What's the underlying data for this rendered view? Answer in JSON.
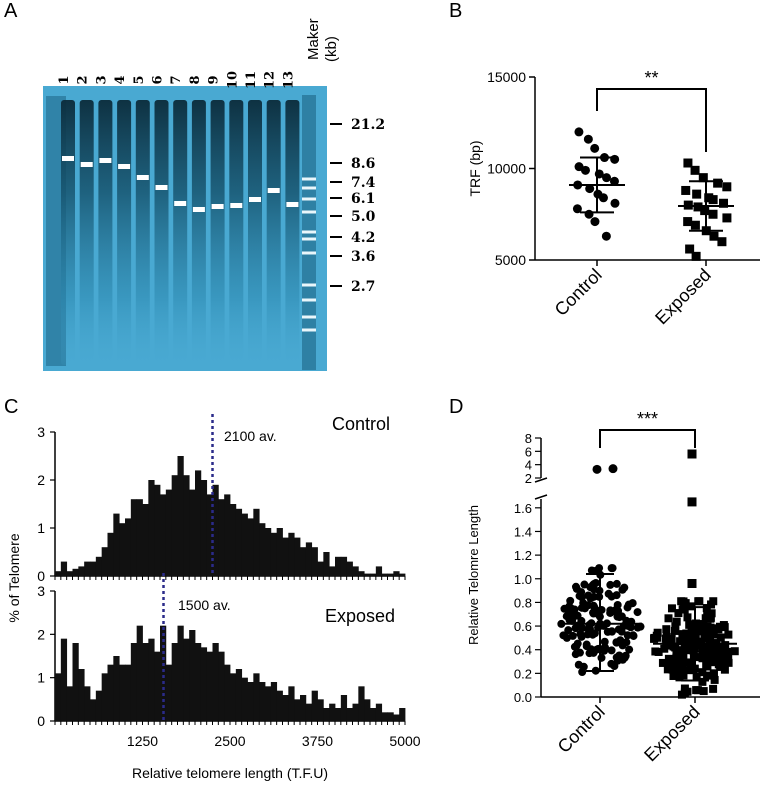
{
  "panels": {
    "a": "A",
    "b": "B",
    "c": "C",
    "d": "D"
  },
  "colors": {
    "gel_bg": "#49a9d2",
    "gel_dark": "#0b2b3a",
    "band_marker": "#ffffff",
    "dotted_line": "#2b2b8a"
  },
  "gel": {
    "lanes": [
      "1",
      "2",
      "3",
      "4",
      "5",
      "6",
      "7",
      "8",
      "9",
      "10",
      "11",
      "12",
      "13"
    ],
    "marker_label": "Maker",
    "unit_label": "(kb)",
    "marker_sizes": [
      "21.2",
      "8.6",
      "7.4",
      "6.1",
      "5.0",
      "4.2",
      "3.6",
      "2.7"
    ]
  },
  "chart_data": [
    {
      "id": "B",
      "type": "scatter",
      "ylabel": "TRF (bp)",
      "yticks": [
        "5000",
        "10000",
        "15000"
      ],
      "ylim": [
        5000,
        15000
      ],
      "categories": [
        "Control",
        "Exposed"
      ],
      "significance": "**",
      "series": [
        {
          "name": "Control",
          "marker": "circle",
          "values": [
            12000,
            11600,
            11100,
            10600,
            10500,
            10100,
            9900,
            9700,
            9500,
            9300,
            9100,
            8900,
            8600,
            8400,
            8100,
            7800,
            7500,
            7100,
            6300
          ],
          "mean": 9100,
          "sd_low": 7600,
          "sd_high": 10600
        },
        {
          "name": "Exposed",
          "marker": "square",
          "values": [
            10300,
            9900,
            9500,
            9200,
            9000,
            8800,
            8600,
            8400,
            8300,
            8100,
            8000,
            7900,
            7700,
            7500,
            7300,
            7100,
            6900,
            6600,
            6300,
            6000,
            5600,
            5200
          ],
          "mean": 7950,
          "sd_low": 6600,
          "sd_high": 9300
        }
      ]
    },
    {
      "id": "C",
      "type": "bar",
      "xlabel": "Relative telomere length (T.F.U)",
      "ylabel": "% of Telomere",
      "xticks": [
        "1250",
        "2500",
        "3750",
        "5000"
      ],
      "x_range": [
        0,
        5000
      ],
      "yticks": [
        "0",
        "1",
        "2",
        "3"
      ],
      "ylim": [
        0,
        3
      ],
      "series": [
        {
          "name": "Control",
          "mean_label": "2100 av.",
          "mean_x": 2250,
          "values": [
            0.1,
            0.3,
            0.1,
            0.15,
            0.2,
            0.3,
            0.3,
            0.4,
            0.6,
            0.9,
            1.3,
            1.1,
            1.2,
            1.6,
            1.6,
            1.5,
            2.0,
            1.9,
            1.7,
            1.8,
            2.1,
            2.5,
            2.1,
            1.8,
            2.2,
            2.0,
            1.7,
            1.9,
            1.6,
            1.7,
            1.5,
            1.4,
            1.3,
            1.2,
            1.4,
            1.1,
            1.0,
            0.9,
            1.0,
            0.8,
            0.9,
            0.8,
            0.6,
            0.7,
            0.6,
            0.3,
            0.5,
            0.2,
            0.4,
            0.4,
            0.3,
            0.2,
            0.1,
            0.05,
            0.05,
            0.2,
            0.05,
            0.05,
            0.1,
            0.05
          ]
        },
        {
          "name": "Exposed",
          "mean_label": "1500 av.",
          "mean_x": 1550,
          "values": [
            1.1,
            1.9,
            0.8,
            1.8,
            1.2,
            0.8,
            0.5,
            0.7,
            1.1,
            1.3,
            1.5,
            1.3,
            1.3,
            1.8,
            2.2,
            1.8,
            1.9,
            1.6,
            2.2,
            1.3,
            1.8,
            2.2,
            1.9,
            2.1,
            1.8,
            1.7,
            1.6,
            1.8,
            1.6,
            1.3,
            1.1,
            1.2,
            1.0,
            0.9,
            1.1,
            0.9,
            0.8,
            0.9,
            0.7,
            0.6,
            0.8,
            0.5,
            0.6,
            0.4,
            0.7,
            0.5,
            0.3,
            0.4,
            0.3,
            0.6,
            0.3,
            0.4,
            0.8,
            0.5,
            0.3,
            0.4,
            0.2,
            0.2,
            0.15,
            0.3
          ]
        }
      ]
    },
    {
      "id": "D",
      "type": "scatter",
      "ylabel": "Relative Telomre Length",
      "yticks_upper": [
        "2",
        "4",
        "6",
        "8"
      ],
      "yticks_lower": [
        "0.0",
        "0.2",
        "0.4",
        "0.6",
        "0.8",
        "1.0",
        "1.2",
        "1.4",
        "1.6"
      ],
      "ylim_lower": [
        0,
        1.7
      ],
      "ylim_upper": [
        2,
        8
      ],
      "categories": [
        "Control",
        "Exposed"
      ],
      "significance": "***",
      "series": [
        {
          "name": "Control",
          "marker": "circle",
          "mean": 0.62,
          "sd_low": 0.22,
          "sd_high": 1.04,
          "outliers": [
            3.3,
            3.4
          ],
          "n": 150
        },
        {
          "name": "Exposed",
          "marker": "square",
          "mean": 0.45,
          "sd_low": 0.14,
          "sd_high": 0.76,
          "outliers": [
            5.6,
            1.65,
            0.96
          ],
          "n": 170
        }
      ]
    }
  ]
}
